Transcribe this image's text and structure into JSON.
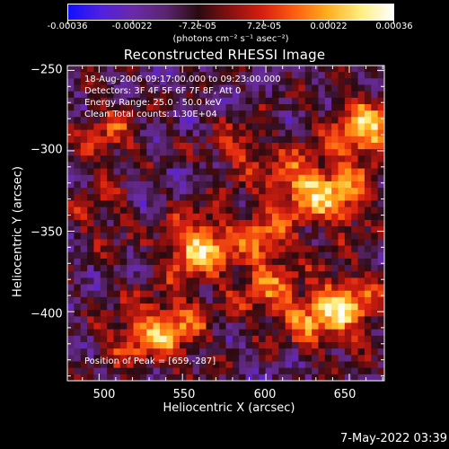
{
  "colorbar": {
    "ticks": [
      "-0.00036",
      "-0.00022",
      "-7.2e-05",
      "7.2e-05",
      "0.00022",
      "0.00036"
    ],
    "units": "(photons cm⁻² s⁻¹ asec⁻²)",
    "stops": [
      "#1010ff",
      "#5020e0",
      "#6a2aa8",
      "#5a2570",
      "#2a0a10",
      "#8a1010",
      "#d82010",
      "#ff6010",
      "#ffb020",
      "#ffee80",
      "#ffffff"
    ]
  },
  "chart_data": {
    "type": "heatmap",
    "title": "Reconstructed RHESSI Image",
    "xlabel": "Heliocentric X (arcsec)",
    "ylabel": "Heliocentric Y (arcsec)",
    "xlim": [
      481,
      671
    ],
    "ylim": [
      -443,
      -247
    ],
    "xticks": [
      500,
      550,
      600,
      650
    ],
    "yticks": [
      -250,
      -300,
      -350,
      -400
    ],
    "clim": [
      -0.00036,
      0.00036
    ],
    "peak": [
      659,
      -287
    ],
    "blobs": [
      {
        "x": 560,
        "y": -360,
        "amp": 0.00036
      },
      {
        "x": 545,
        "y": -410,
        "amp": 0.00026
      },
      {
        "x": 520,
        "y": -415,
        "amp": 0.0002
      },
      {
        "x": 600,
        "y": -355,
        "amp": 0.00024
      },
      {
        "x": 620,
        "y": -320,
        "amp": 0.00026
      },
      {
        "x": 645,
        "y": -330,
        "amp": 0.00028
      },
      {
        "x": 659,
        "y": -287,
        "amp": 0.00036
      },
      {
        "x": 650,
        "y": -395,
        "amp": 0.00028
      },
      {
        "x": 630,
        "y": -405,
        "amp": 0.00022
      },
      {
        "x": 505,
        "y": -290,
        "amp": 0.00018
      },
      {
        "x": 585,
        "y": -300,
        "amp": 0.00016
      },
      {
        "x": 600,
        "y": -390,
        "amp": 0.0002
      },
      {
        "x": 500,
        "y": -340,
        "amp": 0.00012
      }
    ]
  },
  "annotations": [
    "18-Aug-2006 09:17:00.000 to 09:23:00.000",
    "Detectors: 3F 4F 5F 6F 7F 8F, Att 0",
    "Energy Range: 25.0 - 50.0 keV",
    "Clean     Total counts: 1.30E+04"
  ],
  "peak_label": "Position of Peak = [659,-287]",
  "ytick_labels": [
    "−250",
    "−300",
    "−350",
    "−400"
  ],
  "xtick_labels": [
    "500",
    "550",
    "600",
    "650"
  ],
  "timestamp": "7-May-2022 03:39"
}
